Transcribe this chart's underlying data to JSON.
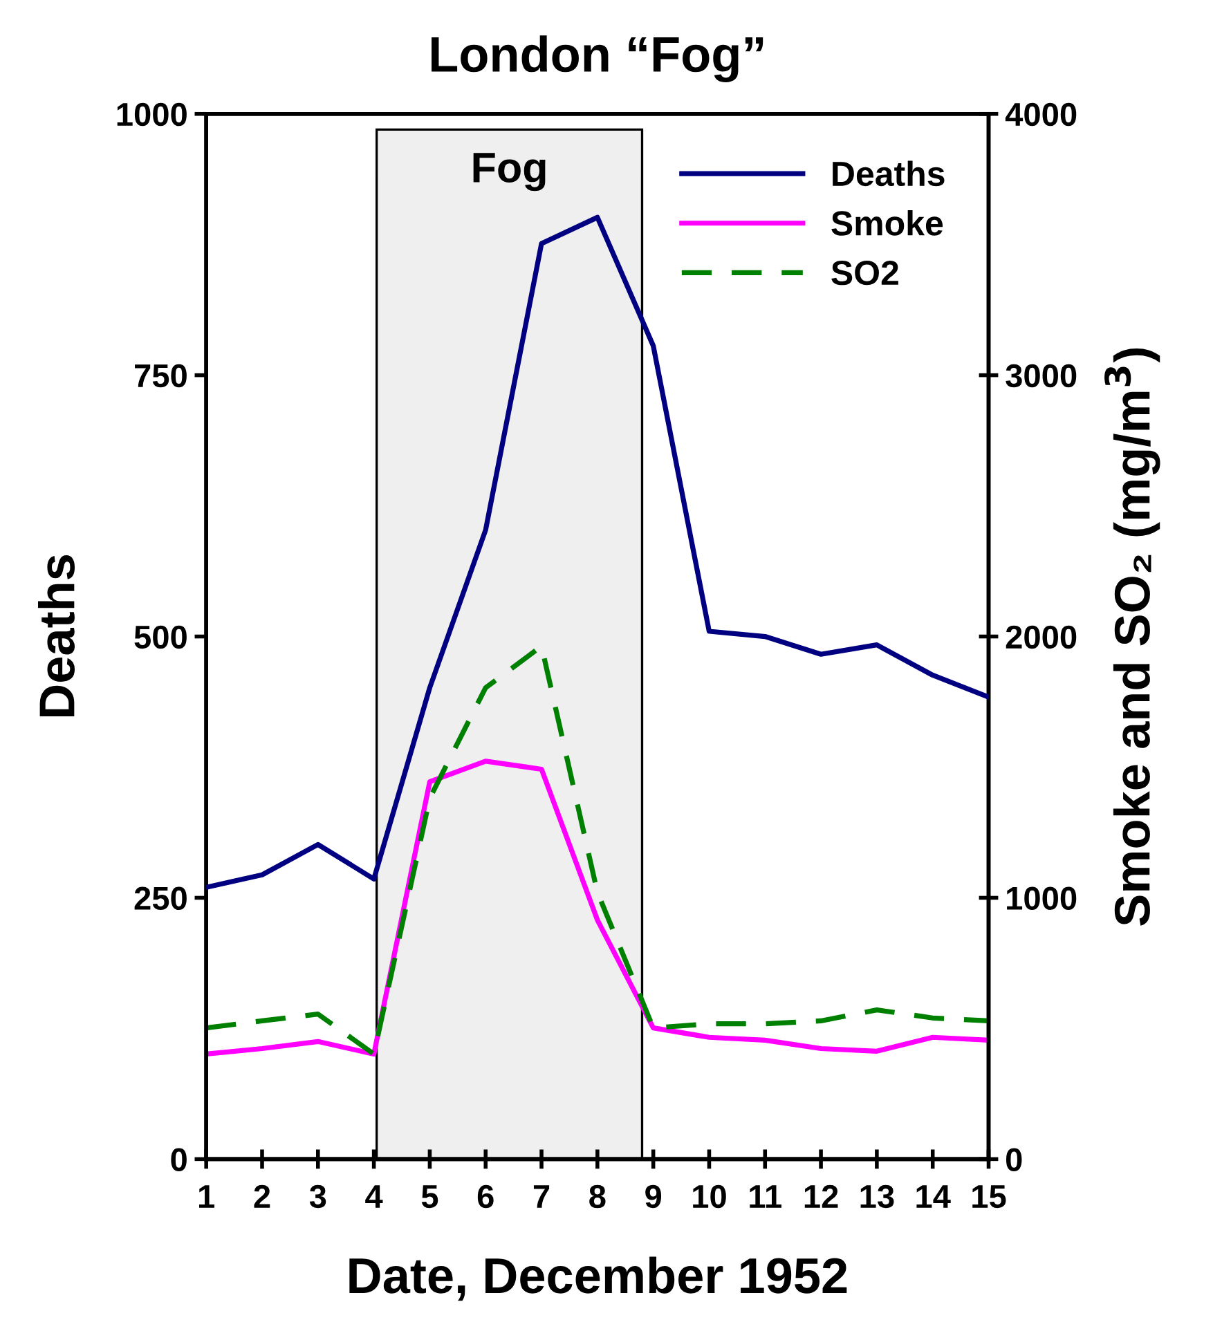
{
  "chart_data": {
    "type": "line",
    "title": "London “Fog”",
    "xlabel": "Date, December 1952",
    "ylabel": "Deaths",
    "y2label": "Smoke and SO₂ (mg/m$^{3}$)",
    "x": [
      1,
      2,
      3,
      4,
      5,
      6,
      7,
      8,
      9,
      10,
      11,
      12,
      13,
      14,
      15
    ],
    "series": [
      {
        "name": "Deaths",
        "color": "#000080",
        "line_style": "solid",
        "values": [
          260,
          272,
          301,
          268,
          451,
          602,
          876,
          901,
          778,
          505,
          500,
          483,
          492,
          463,
          442
        ]
      },
      {
        "name": "Smoke",
        "color": "#ff00ff",
        "line_style": "solid",
        "axis": "y2",
        "values": [
          402,
          423,
          450,
          402,
          1444,
          1523,
          1492,
          915,
          502,
          466,
          455,
          423,
          413,
          466,
          455
        ]
      },
      {
        "name": "SO2",
        "color": "#008000",
        "line_style": "dashed",
        "axis": "y2",
        "values": [
          502,
          529,
          555,
          402,
          1381,
          1804,
          1963,
          1021,
          502,
          518,
          518,
          529,
          571,
          540,
          529
        ]
      }
    ],
    "xlim": [
      1,
      15
    ],
    "xticks": [
      1,
      2,
      3,
      4,
      5,
      6,
      7,
      8,
      9,
      10,
      11,
      12,
      13,
      14,
      15
    ],
    "ylim": [
      0,
      1000
    ],
    "yticks": [
      0,
      250,
      500,
      750,
      1000
    ],
    "y2lim": [
      0,
      4000
    ],
    "y2ticks": [
      0,
      1000,
      2000,
      3000,
      4000
    ],
    "bands": [
      {
        "axis": "x",
        "from": 4.05,
        "to": 8.8,
        "label": "Fog",
        "color": "#efefef"
      }
    ],
    "legend": "top right",
    "grid": false,
    "marker": "none"
  }
}
